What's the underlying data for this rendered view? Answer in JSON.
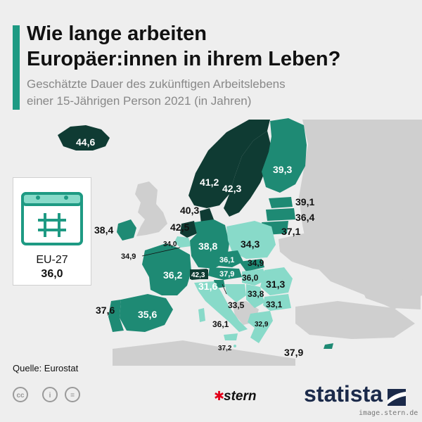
{
  "header": {
    "title_line1": "Wie lange arbeiten",
    "title_line2": "Europäer:innen in ihrem Leben?",
    "subtitle_line1": "Geschätzte Dauer des zukünftigen Arbeitslebens",
    "subtitle_line2": "einer 15-Jährigen Person 2021 (in Jahren)"
  },
  "colors": {
    "dark": "#0f3b33",
    "mid": "#1e8a74",
    "light": "#88dac9",
    "non_eu": "#cfcfcf",
    "sea": "#eeeeee",
    "accent": "#1e9a83"
  },
  "legend": {
    "icon": "calendar-icon",
    "label": "EU-27",
    "value": "36,0"
  },
  "countries": [
    {
      "name": "Island",
      "value": "44,6"
    },
    {
      "name": "Schweden",
      "value": "42,3"
    },
    {
      "name": "Norwegen",
      "value": "41,2"
    },
    {
      "name": "Finnland",
      "value": "39,3"
    },
    {
      "name": "Dänemark",
      "value": "40,3"
    },
    {
      "name": "Niederlande",
      "value": "42,5"
    },
    {
      "name": "Belgien",
      "value": "34,0"
    },
    {
      "name": "Irland",
      "value": "38,4"
    },
    {
      "name": "Luxemburg",
      "value": "34,9"
    },
    {
      "name": "Deutschland",
      "value": "38,8"
    },
    {
      "name": "Frankreich",
      "value": "36,2"
    },
    {
      "name": "Schweiz",
      "value": "42,3"
    },
    {
      "name": "Österreich",
      "value": "37,9"
    },
    {
      "name": "Tschechien",
      "value": "36,1"
    },
    {
      "name": "Slowakei",
      "value": "34,9"
    },
    {
      "name": "Ungarn",
      "value": "36,0"
    },
    {
      "name": "Polen",
      "value": "34,3"
    },
    {
      "name": "Estland",
      "value": "39,1"
    },
    {
      "name": "Lettland",
      "value": "36,4"
    },
    {
      "name": "Litauen",
      "value": "37,1"
    },
    {
      "name": "Slowenien",
      "value": "31,6"
    },
    {
      "name": "Kroatien",
      "value": "33,5"
    },
    {
      "name": "Serbien",
      "value": "33,8"
    },
    {
      "name": "Rumänien",
      "value": "31,3"
    },
    {
      "name": "Bulgarien",
      "value": "33,1"
    },
    {
      "name": "Spanien",
      "value": "35,6"
    },
    {
      "name": "Portugal",
      "value": "37,6"
    },
    {
      "name": "Italien",
      "value": "36,1"
    },
    {
      "name": "Griechenland",
      "value": "32,9"
    },
    {
      "name": "Malta",
      "value": "37,2"
    },
    {
      "name": "Zypern",
      "value": "37,9"
    }
  ],
  "source": "Quelle: Eurostat",
  "license_icons": [
    "cc-icon",
    "by-icon",
    "nd-icon"
  ],
  "license_glyphs": [
    "cc",
    "i",
    "="
  ],
  "logos": {
    "stern": "stern",
    "statista": "statista"
  },
  "watermark": "image.stern.de"
}
